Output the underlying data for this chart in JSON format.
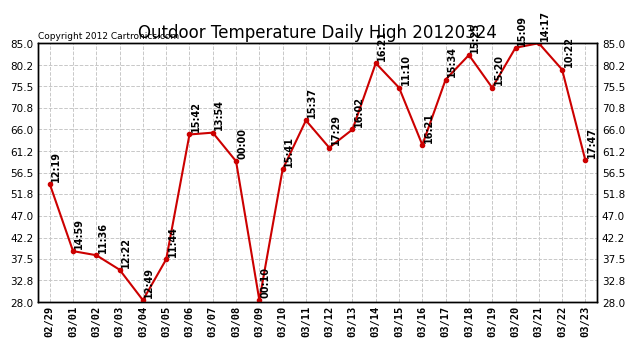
{
  "title": "Outdoor Temperature Daily High 20120324",
  "copyright": "Copyright 2012 Cartronics.com",
  "dates": [
    "02/29",
    "03/01",
    "03/02",
    "03/03",
    "03/04",
    "03/05",
    "03/06",
    "03/07",
    "03/08",
    "03/09",
    "03/10",
    "03/11",
    "03/12",
    "03/13",
    "03/14",
    "03/15",
    "03/16",
    "03/17",
    "03/18",
    "03/19",
    "03/20",
    "03/21",
    "03/22",
    "03/23"
  ],
  "temps": [
    54.0,
    39.2,
    38.3,
    35.1,
    28.4,
    37.4,
    64.9,
    65.3,
    59.0,
    28.4,
    57.2,
    68.0,
    62.0,
    66.0,
    80.6,
    75.2,
    62.6,
    77.0,
    82.4,
    75.2,
    84.0,
    85.0,
    79.2,
    59.2
  ],
  "labels": [
    "12:19",
    "14:59",
    "11:36",
    "12:22",
    "12:49",
    "11:44",
    "15:42",
    "13:54",
    "00:00",
    "00:10",
    "15:41",
    "15:37",
    "17:29",
    "16:02",
    "16:21",
    "11:10",
    "16:21",
    "15:34",
    "15:25",
    "15:20",
    "15:09",
    "14:17",
    "10:22",
    "17:47"
  ],
  "yticks": [
    28.0,
    32.8,
    37.5,
    42.2,
    47.0,
    51.8,
    56.5,
    61.2,
    66.0,
    70.8,
    75.5,
    80.2,
    85.0
  ],
  "ymin": 28.0,
  "ymax": 85.0,
  "line_color": "#cc0000",
  "marker_color": "#cc0000",
  "bg_color": "#ffffff",
  "grid_color": "#c8c8c8",
  "title_fontsize": 12,
  "label_fontsize": 7,
  "tick_fontsize": 7.5,
  "copyright_fontsize": 6.5
}
